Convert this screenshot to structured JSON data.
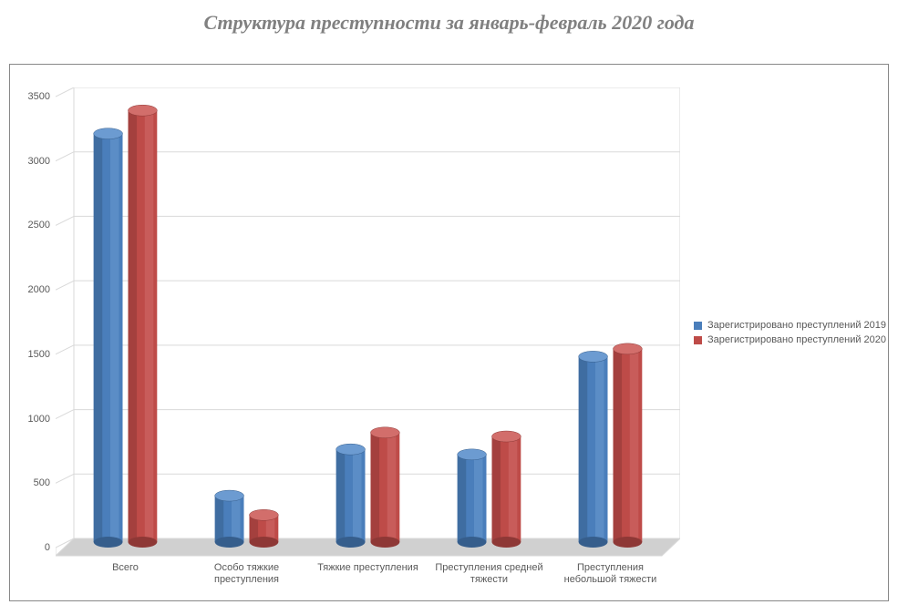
{
  "title": "Структура преступности за январь-февраль 2020 года",
  "chart": {
    "type": "bar-3d-cylinder",
    "background_color": "#ffffff",
    "border_color": "#888888",
    "plot_grid_color": "#d9d9d9",
    "plot_floor_color": "#d0d0d0",
    "axis_label_color": "#595959",
    "axis_fontsize": 11,
    "categories": [
      "Всего",
      "Особо тяжкие преступления",
      "Тяжкие преступления",
      "Преступления средней тяжести",
      "Преступления небольшой тяжести"
    ],
    "series": [
      {
        "name": "Зарегистрировано преступлений 2019",
        "color": "#4a7ebb",
        "color_dark": "#365e8c",
        "color_light": "#6c9bd1",
        "values": [
          3170,
          360,
          720,
          680,
          1440
        ]
      },
      {
        "name": "Зарегистрировано преступлений 2020",
        "color": "#be4b48",
        "color_dark": "#8e3836",
        "color_light": "#d26e6b",
        "values": [
          3350,
          210,
          850,
          820,
          1500
        ]
      }
    ],
    "y_axis": {
      "min": 0,
      "max": 3500,
      "step": 500,
      "ticks": [
        "0",
        "500",
        "1000",
        "1500",
        "2000",
        "2500",
        "3000",
        "3500"
      ]
    },
    "legend_position": "right"
  }
}
